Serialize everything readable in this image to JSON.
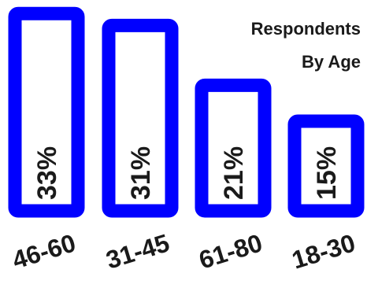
{
  "chart_data": {
    "type": "bar",
    "title_line1": "Respondents",
    "title_line2": "By Age",
    "categories": [
      "46-60",
      "31-45",
      "61-80",
      "18-30"
    ],
    "values": [
      33,
      31,
      21,
      15
    ],
    "value_labels": [
      "33%",
      "31%",
      "21%",
      "15%"
    ],
    "xlabel": "",
    "ylabel": "",
    "ylim": [
      0,
      35
    ],
    "grid": false,
    "legend": "none",
    "bar_color": "#0000ff",
    "bar_fill": "#ffffff",
    "text_color": "#1a1a1a"
  }
}
